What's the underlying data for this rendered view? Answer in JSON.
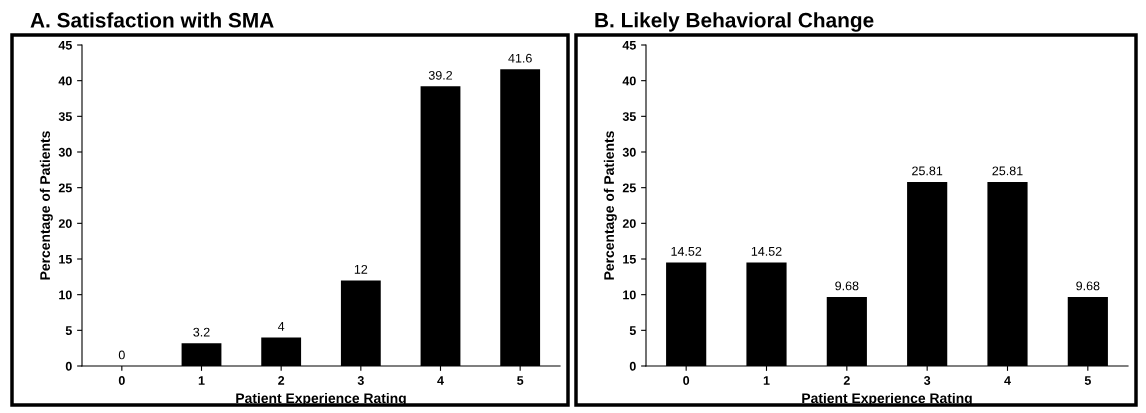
{
  "chart_data": [
    {
      "type": "bar",
      "title": "A. Satisfaction with SMA",
      "xlabel": "Patient Experience Rating",
      "ylabel": "Percentage of Patients",
      "categories": [
        "0",
        "1",
        "2",
        "3",
        "4",
        "5"
      ],
      "values": [
        0,
        3.2,
        4,
        12,
        39.2,
        41.6
      ],
      "color": "#000000",
      "ylim": [
        0,
        45
      ],
      "yticks": [
        0,
        5,
        10,
        15,
        20,
        25,
        30,
        35,
        40,
        45
      ],
      "data_labels": true,
      "grid": false,
      "legend": false
    },
    {
      "type": "bar",
      "title": "B. Likely Behavioral Change",
      "xlabel": "Patient Experience Rating",
      "ylabel": "Percentage of Patients",
      "categories": [
        "0",
        "1",
        "2",
        "3",
        "4",
        "5"
      ],
      "values": [
        14.52,
        14.52,
        9.68,
        25.81,
        25.81,
        9.68
      ],
      "color": "#000000",
      "ylim": [
        0,
        45
      ],
      "yticks": [
        0,
        5,
        10,
        15,
        20,
        25,
        30,
        35,
        40,
        45
      ],
      "data_labels": true,
      "grid": false,
      "legend": false
    }
  ]
}
